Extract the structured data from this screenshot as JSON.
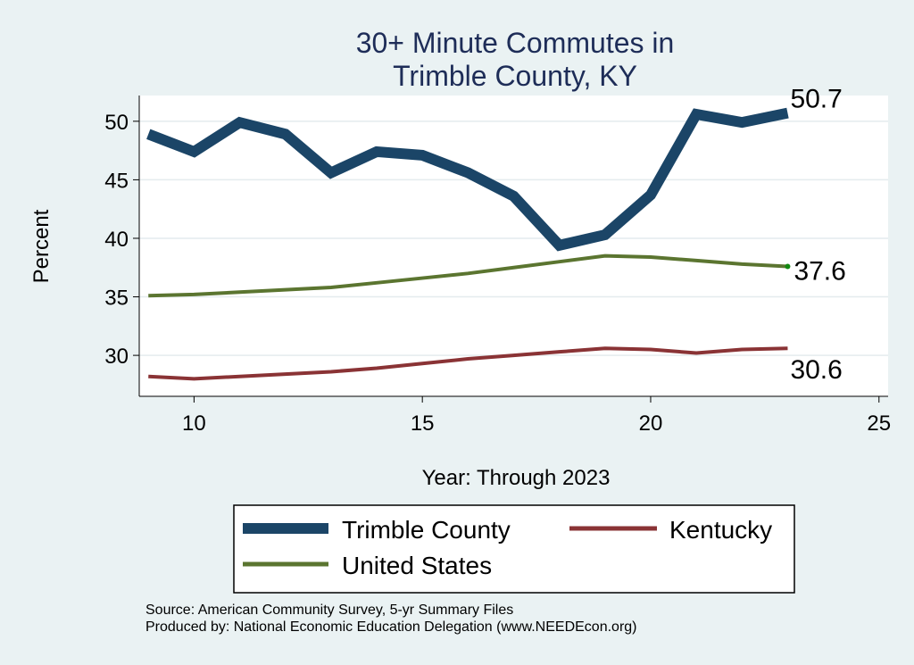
{
  "chart_data": {
    "type": "line",
    "title": [
      "30+ Minute Commutes in",
      "Trimble County, KY"
    ],
    "xlabel": "Year: Through 2023",
    "ylabel": "Percent",
    "xlim": [
      8.8,
      25.2
    ],
    "ylim": [
      26.5,
      52.2
    ],
    "xticks": [
      10,
      15,
      20,
      25
    ],
    "yticks": [
      30,
      35,
      40,
      45,
      50
    ],
    "x": [
      9,
      10,
      11,
      12,
      13,
      14,
      15,
      16,
      17,
      18,
      19,
      20,
      21,
      22,
      23
    ],
    "series": [
      {
        "name": "Trimble County",
        "color": "#1b4567",
        "values": [
          48.9,
          47.4,
          49.9,
          48.9,
          45.6,
          47.4,
          47.1,
          45.6,
          43.6,
          39.4,
          40.3,
          43.7,
          50.6,
          49.9,
          50.7
        ],
        "end_label": "50.7"
      },
      {
        "name": "Kentucky",
        "color": "#8a3335",
        "values": [
          28.2,
          28.0,
          28.2,
          28.4,
          28.6,
          28.9,
          29.3,
          29.7,
          30.0,
          30.3,
          30.6,
          30.5,
          30.2,
          30.5,
          30.6
        ],
        "end_label": "30.6"
      },
      {
        "name": "United States",
        "color": "#5b7530",
        "values": [
          35.1,
          35.2,
          35.4,
          35.6,
          35.8,
          36.2,
          36.6,
          37.0,
          37.5,
          38.0,
          38.5,
          38.4,
          38.1,
          37.8,
          37.6
        ],
        "end_label": "37.6"
      }
    ],
    "legend_position": "bottom"
  },
  "source": {
    "line1": "Source: American Community Survey, 5-yr Summary Files",
    "line2": "Produced by: National Economic Education Delegation (www.NEEDEcon.org)"
  }
}
